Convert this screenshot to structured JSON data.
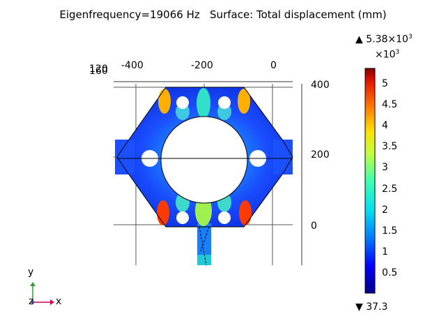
{
  "plot": {
    "title": "Eigenfrequency=19066 Hz   Surface: Total displacement (mm)",
    "x_axis_ticks": [
      "-400",
      "-200",
      "0"
    ],
    "y_axis_ticks": [
      "400",
      "200",
      "0"
    ],
    "overlapped_tick_a": "120",
    "overlapped_tick_b": "160",
    "triad": {
      "y_label": "y",
      "z_label": "z",
      "x_label": "x"
    }
  },
  "colorbar": {
    "max_marker": "▲",
    "max_value_base": "5.38×10",
    "max_value_exp": "3",
    "multiplier_base": "×10",
    "multiplier_exp": "3",
    "ticks": [
      "5",
      "4.5",
      "4",
      "3.5",
      "3",
      "2.5",
      "2",
      "1.5",
      "1",
      "0.5"
    ],
    "tick_values": [
      5,
      4.5,
      4,
      3.5,
      3,
      2.5,
      2,
      1.5,
      1,
      0.5
    ],
    "range": [
      0.0373,
      5.38
    ],
    "min_marker": "▼",
    "min_value": "37.3",
    "colormap": "rainbow"
  }
}
